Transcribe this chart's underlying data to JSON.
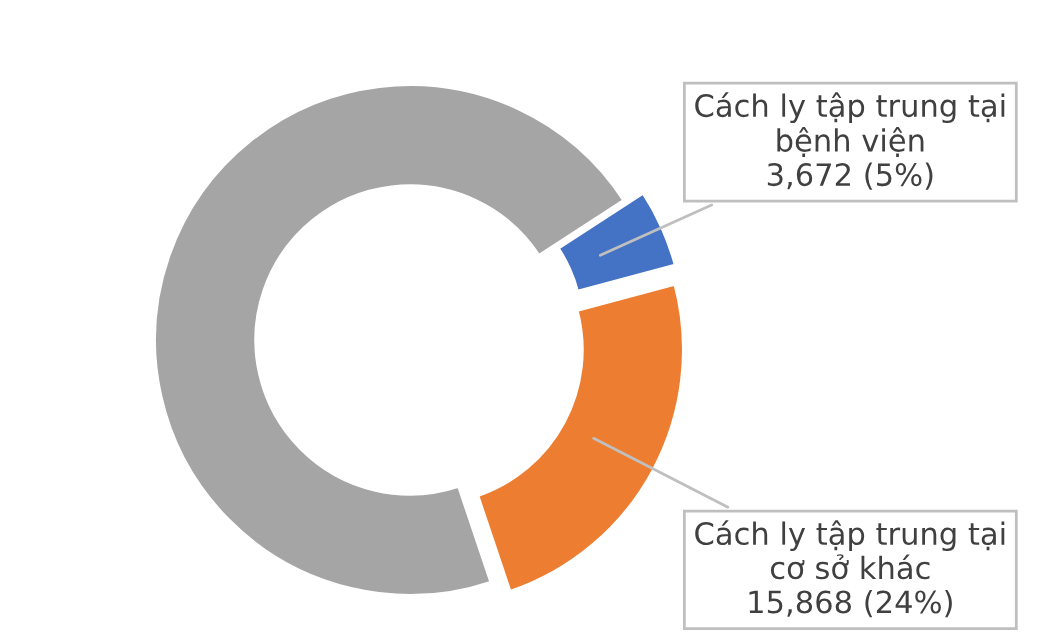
{
  "chart_data": {
    "type": "donut",
    "categories": [
      "Cách ly tập trung tại bệnh viện",
      "Cách ly tập trung tại cơ sở khác",
      null
    ],
    "values": [
      5,
      24,
      71
    ],
    "value_labels": [
      "3,672 (5%)",
      "15,868 (24%)",
      null
    ],
    "colors": [
      "#4472c4",
      "#ed7d31",
      "#a5a5a5"
    ]
  }
}
